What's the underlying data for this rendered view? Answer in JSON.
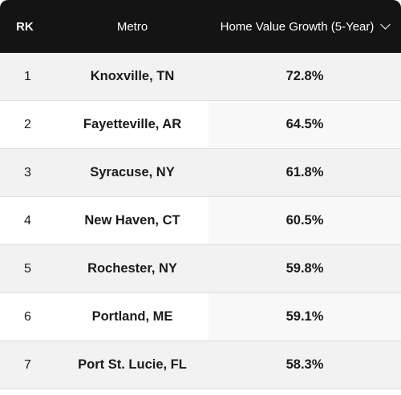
{
  "table": {
    "headers": {
      "rank": "RK",
      "metro": "Metro",
      "growth": "Home Value Growth (5-Year)"
    },
    "sort_icon": "chevron-down-icon",
    "rows": [
      {
        "rank": "1",
        "metro": "Knoxville, TN",
        "growth": "72.8%"
      },
      {
        "rank": "2",
        "metro": "Fayetteville, AR",
        "growth": "64.5%"
      },
      {
        "rank": "3",
        "metro": "Syracuse, NY",
        "growth": "61.8%"
      },
      {
        "rank": "4",
        "metro": "New Haven, CT",
        "growth": "60.5%"
      },
      {
        "rank": "5",
        "metro": "Rochester, NY",
        "growth": "59.8%"
      },
      {
        "rank": "6",
        "metro": "Portland, ME",
        "growth": "59.1%"
      },
      {
        "rank": "7",
        "metro": "Port St. Lucie, FL",
        "growth": "58.3%"
      }
    ]
  },
  "colors": {
    "header_bg": "#141414",
    "header_text": "#ffffff",
    "row_shaded": "#f2f2f2",
    "row_white": "#ffffff"
  }
}
